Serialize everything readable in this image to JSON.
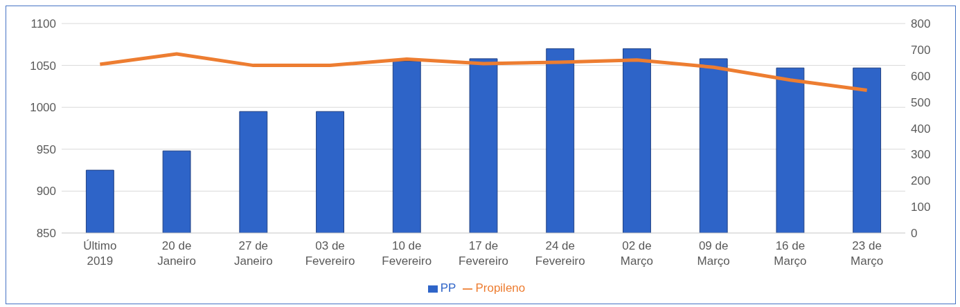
{
  "chart_data": {
    "type": "bar",
    "categories": [
      "Último 2019",
      "20 de Janeiro",
      "27 de Janeiro",
      "03 de Fevereiro",
      "10 de Fevereiro",
      "17 de Fevereiro",
      "24 de Fevereiro",
      "02 de Março",
      "09 de Março",
      "16 de Março",
      "23 de Março"
    ],
    "series": [
      {
        "name": "PP",
        "color": "#2e64c8",
        "values": [
          925,
          948,
          995,
          995,
          1055,
          1058,
          1070,
          1070,
          1058,
          1047,
          1047
        ]
      },
      {
        "name": "Propileno",
        "type": "line",
        "axis": "y2",
        "color": "#ed7d31",
        "values": [
          644,
          684,
          640,
          640,
          664,
          647,
          652,
          661,
          633,
          584,
          545
        ]
      }
    ],
    "ylim": [
      850,
      1100
    ],
    "yticks": [
      850,
      900,
      950,
      1000,
      1050,
      1100
    ],
    "y2lim": [
      0,
      800
    ],
    "y2ticks": [
      0,
      100,
      200,
      300,
      400,
      500,
      600,
      700,
      800
    ],
    "grid": "y",
    "legend": "bottom"
  }
}
